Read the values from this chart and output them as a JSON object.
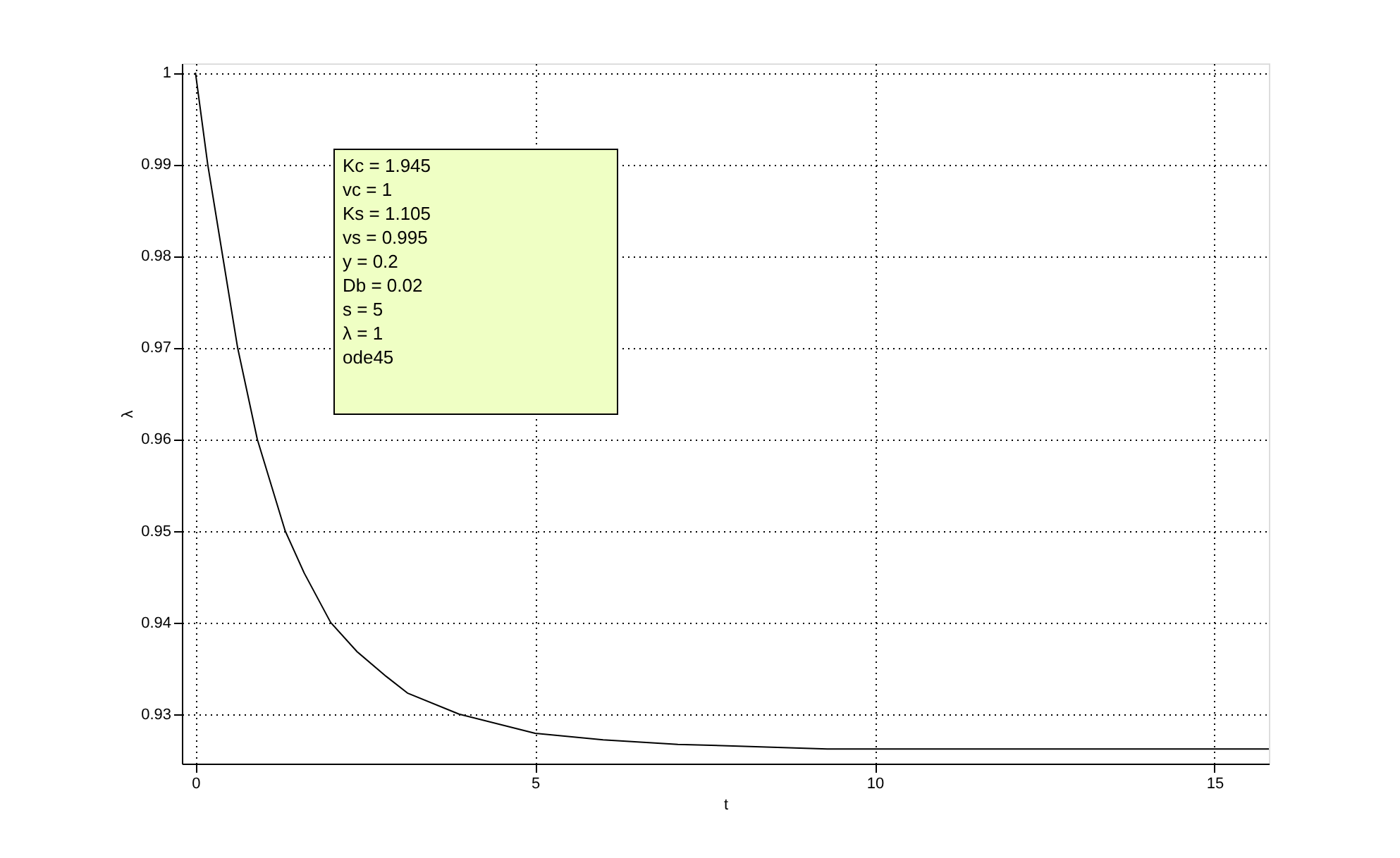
{
  "chart_data": {
    "type": "line",
    "xlabel": "t",
    "ylabel": "λ",
    "x": [
      0,
      0.18,
      0.4,
      0.62,
      0.91,
      1.32,
      1.6,
      1.99,
      2.38,
      2.81,
      3.12,
      3.88,
      5,
      6,
      7.1,
      8,
      9.3,
      15.8
    ],
    "series": [
      {
        "color": "#000000",
        "values": [
          1,
          0.99,
          0.98,
          0.97,
          0.96,
          0.95,
          0.9454,
          0.94,
          0.9368,
          0.9341,
          0.9323,
          0.93,
          0.9279,
          0.9272,
          0.9267,
          0.9265,
          0.9262,
          0.9262
        ]
      }
    ],
    "xlim": [
      -0.2,
      15.8
    ],
    "ylim": [
      0.9246,
      1.001
    ],
    "xticks": [
      0,
      5,
      10,
      15
    ],
    "yticks": [
      0.93,
      0.94,
      0.95,
      0.96,
      0.97,
      0.98,
      0.99,
      1
    ],
    "grid": true,
    "line_style": "solid",
    "marker": "none",
    "annotations": [
      "Kc = 1.945",
      "vc = 1",
      "Ks = 1.105",
      "vs = 0.995",
      "y = 0.2",
      "Db = 0.02",
      "s = 5",
      "λ = 1",
      "ode45"
    ]
  }
}
